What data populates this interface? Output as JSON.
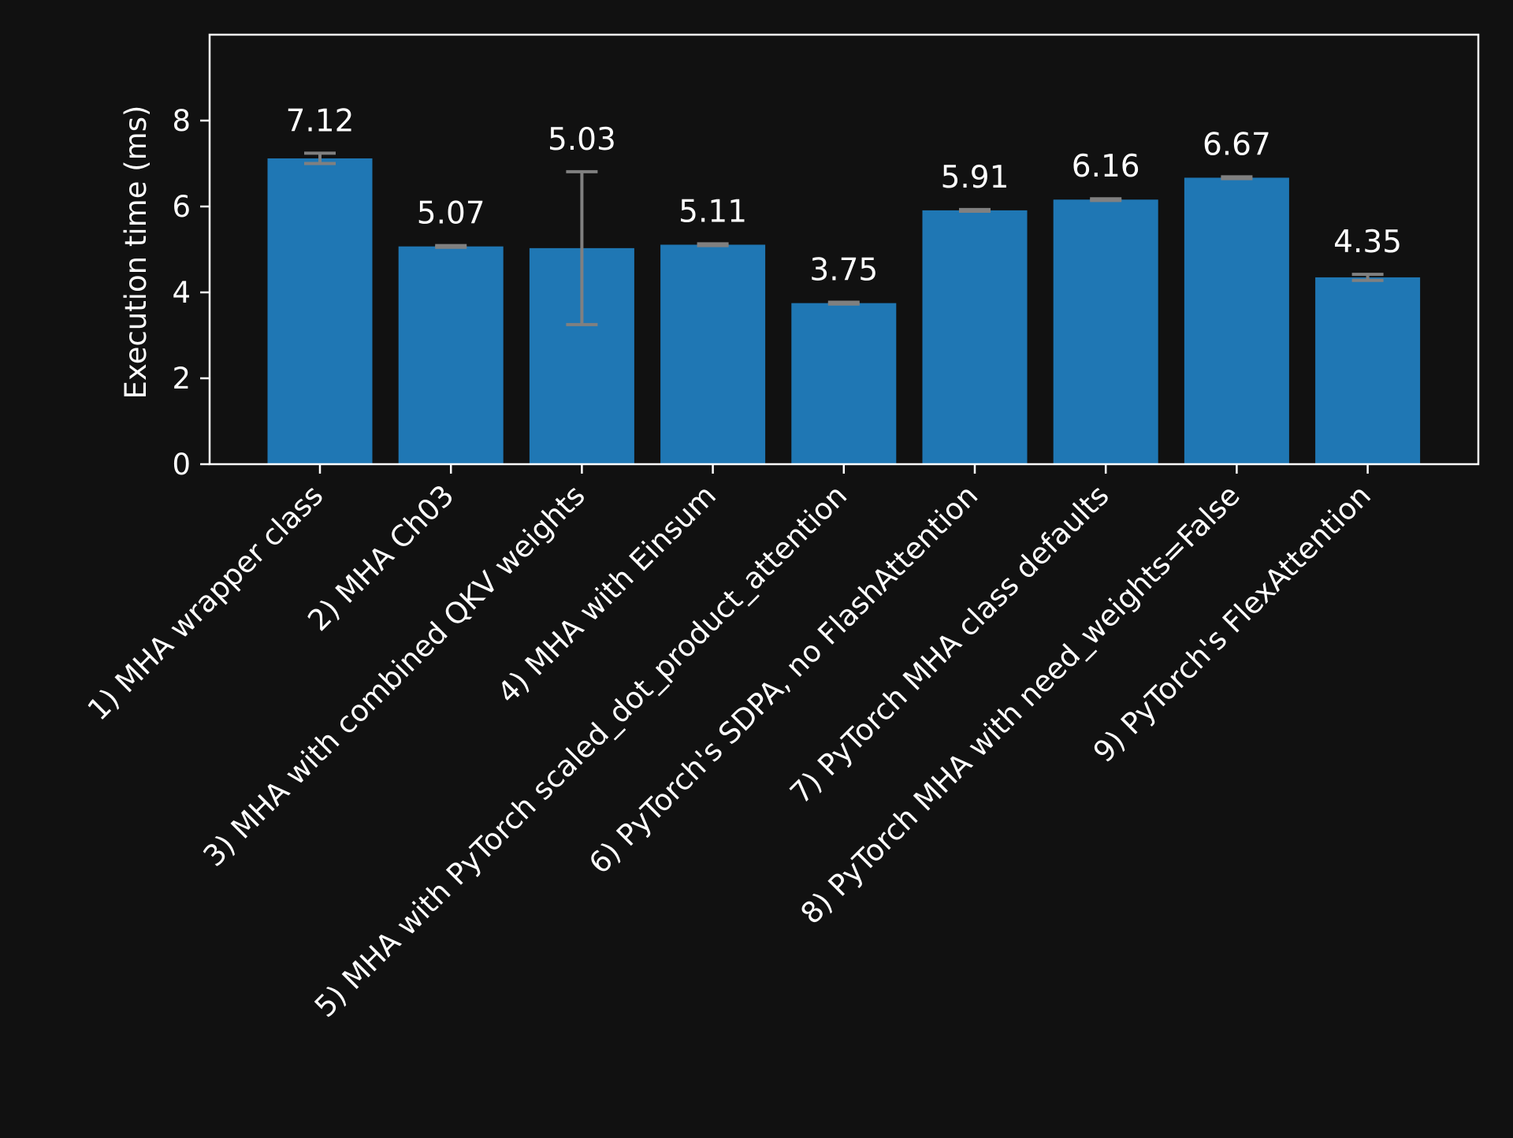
{
  "chart_data": {
    "type": "bar",
    "categories": [
      "1) MHA wrapper class",
      "2) MHA Ch03",
      "3) MHA with combined QKV weights",
      "4) MHA with Einsum",
      "5) MHA with PyTorch scaled_dot_product_attention",
      "6) PyTorch's SDPA, no FlashAttention",
      "7) PyTorch MHA class defaults",
      "8) PyTorch MHA with need_weights=False",
      "9) PyTorch's FlexAttention"
    ],
    "values": [
      7.12,
      5.07,
      5.03,
      5.11,
      3.75,
      5.91,
      6.16,
      6.67,
      4.35
    ],
    "value_labels": [
      "7.12",
      "5.07",
      "5.03",
      "5.11",
      "3.75",
      "5.91",
      "6.16",
      "6.67",
      "4.35"
    ],
    "error_bars": [
      0.12,
      0.02,
      1.78,
      0.02,
      0.02,
      0.02,
      0.02,
      0.02,
      0.07
    ],
    "ylabel": "Execution time (ms)",
    "xlabel": "",
    "title": "",
    "ylim": [
      0,
      10
    ],
    "yticks": [
      0,
      2,
      4,
      6,
      8
    ],
    "grid": false,
    "colors": {
      "background": "#111111",
      "bar": "#1f77b4",
      "error_bar": "#808080",
      "axes": "#ffffff",
      "text": "#ffffff"
    }
  }
}
